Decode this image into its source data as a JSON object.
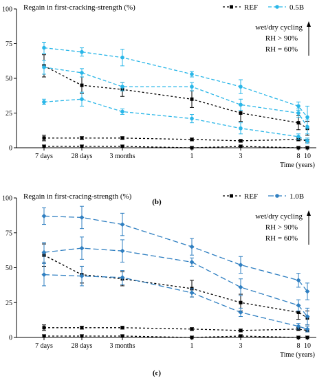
{
  "chart_data": [
    {
      "type": "line",
      "panel_label": "(b)",
      "title": "Regain in first-cracking-strength (%)",
      "xlabel": "Time (years)",
      "ylabel": "",
      "ylim": [
        0,
        100
      ],
      "yticks": [
        0,
        25,
        50,
        75,
        100
      ],
      "x_ticks": [
        "7 days",
        "28 days",
        "3 months",
        "1",
        "3",
        "8",
        "10"
      ],
      "legend": [
        "REF",
        "0.5B"
      ],
      "legend_placement": "top-right",
      "annotations": [
        "wet/dry cycling",
        "RH > 90%",
        "RH = 60%"
      ],
      "colors": {
        "REF": "#000000",
        "B": "#29b6e8"
      },
      "series": [
        {
          "name": "REF",
          "style": "ref",
          "values": [
            59,
            45,
            42,
            35,
            25,
            18,
            14
          ],
          "errors": [
            8,
            6,
            5,
            6,
            6,
            5,
            5
          ]
        },
        {
          "name": "REF",
          "style": "ref",
          "values": [
            7,
            7,
            7,
            6,
            5,
            6,
            5
          ],
          "errors": [
            2,
            1,
            1,
            1,
            1,
            1,
            1
          ]
        },
        {
          "name": "REF",
          "style": "ref",
          "values": [
            1,
            1,
            1,
            0,
            1,
            0,
            0
          ],
          "errors": [
            1,
            1,
            1,
            1,
            1,
            1,
            1
          ]
        },
        {
          "name": "0.5B",
          "style": "b",
          "values": [
            72,
            69,
            65,
            53,
            44,
            30,
            22
          ],
          "errors": [
            4,
            3,
            6,
            2,
            5,
            3,
            8
          ]
        },
        {
          "name": "0.5B",
          "style": "b",
          "values": [
            58,
            54,
            44,
            44,
            31,
            25,
            15
          ],
          "errors": [
            5,
            3,
            3,
            3,
            4,
            3,
            5
          ]
        },
        {
          "name": "0.5B",
          "style": "b",
          "values": [
            33,
            35,
            26,
            21,
            14,
            8,
            5
          ],
          "errors": [
            2,
            5,
            2,
            3,
            4,
            2,
            2
          ]
        }
      ]
    },
    {
      "type": "line",
      "panel_label": "(c)",
      "title": "Regain in first-cracing-strength (%)",
      "xlabel": "Time (years)",
      "ylabel": "",
      "ylim": [
        0,
        100
      ],
      "yticks": [
        0,
        25,
        50,
        75,
        100
      ],
      "x_ticks": [
        "7 days",
        "28 days",
        "3 months",
        "1",
        "3",
        "8",
        "10"
      ],
      "legend": [
        "REF",
        "1.0B"
      ],
      "legend_placement": "top-right",
      "annotations": [
        "wet/dry cycling",
        "RH > 90%",
        "RH = 60%"
      ],
      "colors": {
        "REF": "#000000",
        "B": "#2f7fc1"
      },
      "series": [
        {
          "name": "REF",
          "style": "ref",
          "values": [
            59,
            45,
            42,
            35,
            25,
            18,
            14
          ],
          "errors": [
            8,
            6,
            5,
            6,
            6,
            5,
            5
          ]
        },
        {
          "name": "REF",
          "style": "ref",
          "values": [
            7,
            7,
            7,
            6,
            5,
            6,
            5
          ],
          "errors": [
            2,
            1,
            1,
            1,
            1,
            1,
            1
          ]
        },
        {
          "name": "REF",
          "style": "ref",
          "values": [
            1,
            1,
            1,
            0,
            1,
            0,
            0
          ],
          "errors": [
            1,
            1,
            1,
            1,
            1,
            1,
            1
          ]
        },
        {
          "name": "1.0B",
          "style": "b",
          "values": [
            87,
            86,
            81,
            65,
            52,
            41,
            33
          ],
          "errors": [
            6,
            8,
            8,
            6,
            6,
            5,
            6
          ]
        },
        {
          "name": "1.0B",
          "style": "b",
          "values": [
            61,
            64,
            62,
            54,
            36,
            23,
            15
          ],
          "errors": [
            7,
            8,
            8,
            3,
            6,
            4,
            6
          ]
        },
        {
          "name": "1.0B",
          "style": "b",
          "values": [
            45,
            44,
            43,
            32,
            18,
            8,
            6
          ],
          "errors": [
            8,
            7,
            5,
            3,
            3,
            2,
            2
          ]
        }
      ]
    }
  ]
}
